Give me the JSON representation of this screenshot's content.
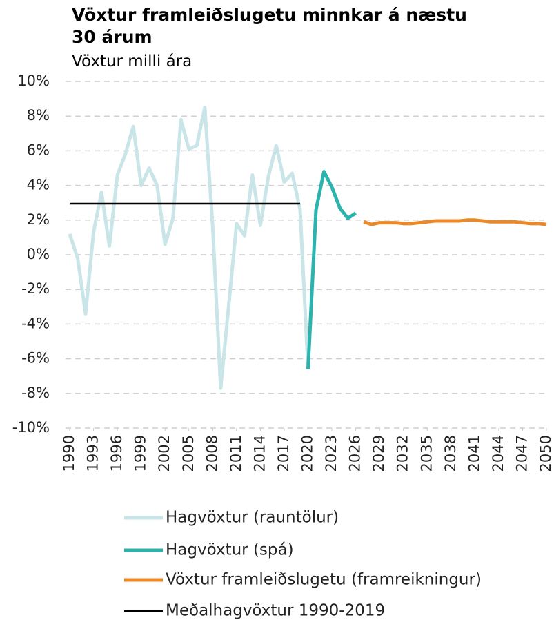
{
  "chart_data": {
    "type": "line",
    "title": "Vöxtur framleiðslugetu minnkar á næstu 30 árum",
    "subtitle": "Vöxtur milli ára",
    "xlim": [
      1990,
      2050
    ],
    "xticks": [
      1990,
      1993,
      1996,
      1999,
      2002,
      2005,
      2008,
      2011,
      2014,
      2017,
      2020,
      2023,
      2026,
      2029,
      2032,
      2035,
      2038,
      2041,
      2044,
      2047,
      2050
    ],
    "ylim": [
      -10,
      10
    ],
    "yticks": [
      {
        "value": -10,
        "label": "-10%"
      },
      {
        "value": -8,
        "label": "-8%"
      },
      {
        "value": -6,
        "label": "-6%"
      },
      {
        "value": -4,
        "label": "-4%"
      },
      {
        "value": -2,
        "label": "-2%"
      },
      {
        "value": 0,
        "label": "0%"
      },
      {
        "value": 2,
        "label": "2%"
      },
      {
        "value": 4,
        "label": "4%"
      },
      {
        "value": 6,
        "label": "6%"
      },
      {
        "value": 8,
        "label": "8%"
      },
      {
        "value": 10,
        "label": "10%"
      }
    ],
    "grid": true,
    "series": [
      {
        "name": "Hagvöxtur (rauntölur)",
        "color": "#c9e5e8",
        "x": [
          1990,
          1991,
          1992,
          1993,
          1994,
          1995,
          1996,
          1997,
          1998,
          1999,
          2000,
          2001,
          2002,
          2003,
          2004,
          2005,
          2006,
          2007,
          2008,
          2009,
          2010,
          2011,
          2012,
          2013,
          2014,
          2015,
          2016,
          2017,
          2018,
          2019,
          2020
        ],
        "values": [
          1.2,
          -0.2,
          -3.4,
          1.3,
          3.6,
          0.5,
          4.6,
          5.8,
          7.4,
          4.0,
          5.0,
          4.0,
          0.6,
          2.1,
          7.8,
          6.1,
          6.3,
          8.5,
          1.6,
          -7.7,
          -3.0,
          1.8,
          1.1,
          4.6,
          1.7,
          4.5,
          6.3,
          4.2,
          4.7,
          2.6,
          -6.6
        ]
      },
      {
        "name": "Hagvöxtur (spá)",
        "color": "#2bb3ad",
        "x": [
          2020,
          2021,
          2022,
          2023,
          2024,
          2025,
          2026
        ],
        "values": [
          -6.6,
          2.6,
          4.8,
          3.9,
          2.7,
          2.1,
          2.4
        ]
      },
      {
        "name": "Vöxtur framleiðslugetu (framreikningur)",
        "color": "#e8892b",
        "x": [
          2027,
          2028,
          2029,
          2030,
          2031,
          2032,
          2033,
          2034,
          2035,
          2036,
          2037,
          2038,
          2039,
          2040,
          2041,
          2042,
          2043,
          2044,
          2045,
          2046,
          2047,
          2048,
          2049,
          2050
        ],
        "values": [
          1.9,
          1.75,
          1.85,
          1.85,
          1.85,
          1.8,
          1.8,
          1.85,
          1.9,
          1.95,
          1.95,
          1.95,
          1.95,
          2.0,
          2.0,
          1.95,
          1.9,
          1.9,
          1.9,
          1.9,
          1.85,
          1.8,
          1.8,
          1.75
        ]
      },
      {
        "name": "Meðalhagvöxtur 1990-2019",
        "color": "#000000",
        "x": [
          1990,
          2019
        ],
        "values": [
          2.95,
          2.95
        ]
      }
    ]
  }
}
